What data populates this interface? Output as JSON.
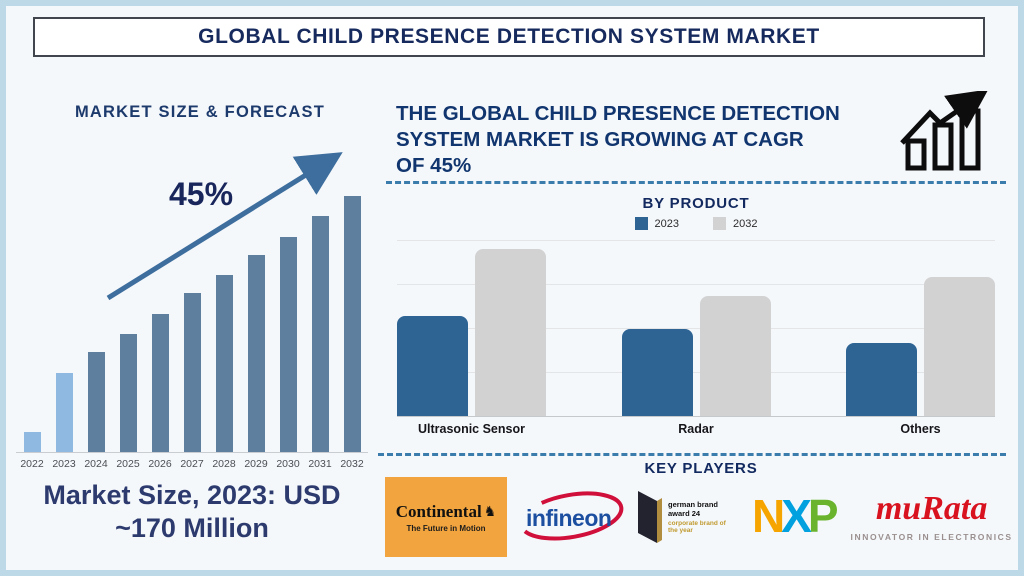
{
  "page": {
    "title": "GLOBAL CHILD PRESENCE DETECTION SYSTEM MARKET",
    "background": "#f5f8fb",
    "frame_color": "#bdd8e7",
    "accent_navy": "#172a5e",
    "dash_color": "#3a7cab"
  },
  "left_panel": {
    "heading": "MARKET SIZE & FORECAST",
    "growth_annotation": "45%",
    "caption_lines": [
      "Market Size, 2023: USD",
      "~170 Million"
    ]
  },
  "right_panel": {
    "heading_lines": [
      "THE GLOBAL CHILD PRESENCE DETECTION",
      "SYSTEM MARKET IS GROWING AT CAGR",
      "OF 45%"
    ],
    "by_product": {
      "title": "BY PRODUCT"
    },
    "key_players": {
      "title": "KEY PLAYERS"
    }
  },
  "chart_data": [
    {
      "type": "bar",
      "title": "MARKET SIZE & FORECAST",
      "categories": [
        "2022",
        "2023",
        "2024",
        "2025",
        "2026",
        "2027",
        "2028",
        "2029",
        "2030",
        "2031",
        "2032"
      ],
      "values": [
        8,
        31,
        39,
        46,
        54,
        62,
        69,
        77,
        84,
        92,
        100
      ],
      "value_note": "schematic relative heights (% of 2032 bar); labeled fact: 2023 market size = USD ~170 Million, CAGR 45%",
      "annotation": "45%",
      "annotation_arrow": "up-right trend arrow",
      "bar_color": "#5f7f9e",
      "highlight_color": "#8fb9e0",
      "highlight_count": 2,
      "xlabel": "",
      "ylabel": "",
      "grid": false,
      "legend_position": "none"
    },
    {
      "type": "bar",
      "title": "BY PRODUCT",
      "categories": [
        "Ultrasonic Sensor",
        "Radar",
        "Others"
      ],
      "series": [
        {
          "name": "2023",
          "color": "#2d6494",
          "values": [
            100,
            87,
            73
          ]
        },
        {
          "name": "2032",
          "color": "#d2d2d2",
          "values": [
            167,
            120,
            139
          ]
        }
      ],
      "value_note": "relative index read from bar heights; 2023 Ultrasonic Sensor = 100",
      "xlabel": "",
      "ylabel": "",
      "ylim": [
        0,
        175
      ],
      "grid": true,
      "legend_position": "top"
    }
  ],
  "icons": {
    "growth_chart_icon": "three ascending outlined bars with zigzag rising arrow",
    "trend_arrow_icon": "straight diagonal arrow up-right",
    "continental_horse_glyph": "♞"
  },
  "logos": {
    "continental": {
      "wordmark": "Continental",
      "tagline": "The Future in Motion",
      "bg": "#f2a43e"
    },
    "infineon": {
      "wordmark": "infineon",
      "text_color": "#1d4fa1",
      "swoosh_color": "#d0103a"
    },
    "german_brand_award": {
      "line1": "german brand award 24",
      "line2": "corporate brand of the year"
    },
    "nxp": {
      "letters": [
        {
          "ch": "N",
          "color": "#f6a500"
        },
        {
          "ch": "X",
          "color": "#00a1de"
        },
        {
          "ch": "P",
          "color": "#69b32d"
        }
      ]
    },
    "murata": {
      "wordmark": "muRata",
      "tagline": "INNOVATOR IN ELECTRONICS",
      "color": "#d8121f"
    }
  }
}
